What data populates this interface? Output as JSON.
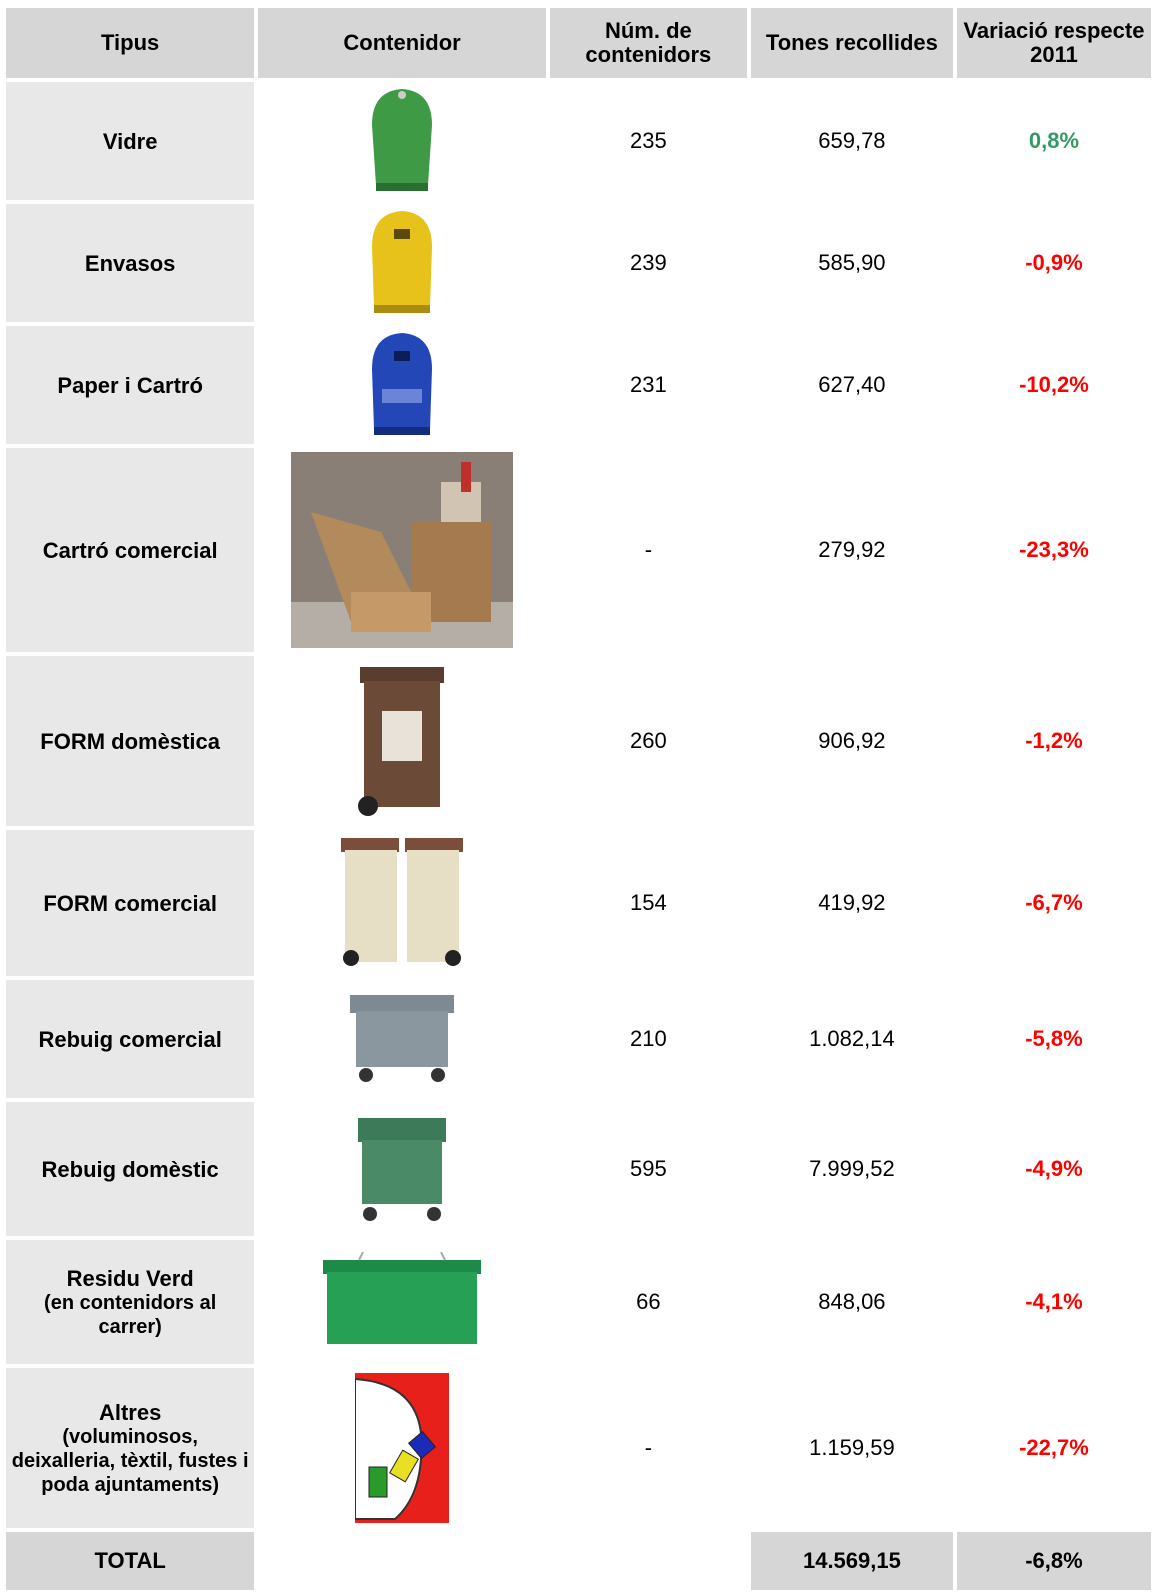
{
  "table": {
    "header": [
      "Tipus",
      "Contenidor",
      "Núm. de contenidors",
      "Tones recollides",
      "Variació respecte 2011"
    ],
    "rows": [
      {
        "tipus": "Vidre",
        "num": "235",
        "tones": "659,78",
        "variacio": "0,8%",
        "color": "#339966"
      },
      {
        "tipus": "Envasos",
        "num": "239",
        "tones": "585,90",
        "variacio": "-0,9%",
        "color": "#ff0000"
      },
      {
        "tipus": "Paper i Cartró",
        "num": "231",
        "tones": "627,40",
        "variacio": "-10,2%",
        "color": "#ff0000"
      },
      {
        "tipus": "Cartró comercial",
        "num": "-",
        "tones": "279,92",
        "variacio": "-23,3%",
        "color": "#ff0000"
      },
      {
        "tipus": "FORM domèstica",
        "num": "260",
        "tones": "906,92",
        "variacio": "-1,2%",
        "color": "#ff0000"
      },
      {
        "tipus": "FORM comercial",
        "num": "154",
        "tones": "419,92",
        "variacio": "-6,7%",
        "color": "#ff0000"
      },
      {
        "tipus": "Rebuig comercial",
        "num": "210",
        "tones": "1.082,14",
        "variacio": "-5,8%",
        "color": "#ff0000"
      },
      {
        "tipus": "Rebuig domèstic",
        "num": "595",
        "tones": "7.999,52",
        "variacio": "-4,9%",
        "color": "#ff0000"
      },
      {
        "tipus": "Residu Verd",
        "note": "(en contenidors al carrer)",
        "num": "66",
        "tones": "848,06",
        "variacio": "-4,1%",
        "color": "#ff0000"
      },
      {
        "tipus": "Altres",
        "note": "(voluminosos, deixalleria, tèxtil, fustes i poda ajuntaments)",
        "num": "-",
        "tones": "1.159,59",
        "variacio": "-22,7%",
        "color": "#ff0000"
      }
    ],
    "total": {
      "tipus": "TOTAL",
      "tones": "14.569,15",
      "variacio": "-6,8%"
    }
  }
}
